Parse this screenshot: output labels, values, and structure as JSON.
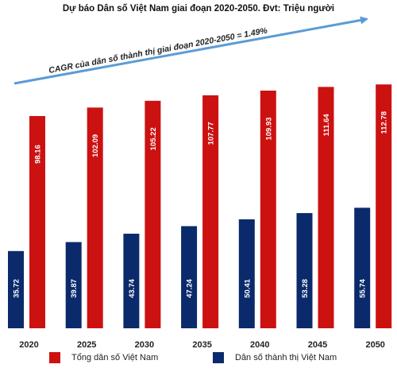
{
  "chart_data": {
    "type": "bar",
    "title": "Dự báo Dân số Việt Nam  giai đoạn 2020-2050. Đvt: Triệu người",
    "annotation": "CAGR của dân số thành thị giai đoạn 2020-2050 = 1.49%",
    "categories": [
      "2020",
      "2025",
      "2030",
      "2035",
      "2040",
      "2045",
      "2050"
    ],
    "series": [
      {
        "name": "Dân số thành thị Việt Nam",
        "color": "#0a2a6b",
        "values": [
          35.72,
          39.87,
          43.74,
          47.24,
          50.41,
          53.28,
          55.74
        ]
      },
      {
        "name": "Tổng dân số Việt Nam",
        "color": "#cc1111",
        "values": [
          98.16,
          102.09,
          105.22,
          107.77,
          109.93,
          111.64,
          112.78
        ]
      }
    ],
    "legend": [
      "Tổng dân số Việt Nam",
      "Dân số thành thị Việt Nam"
    ],
    "ylim": [
      0,
      125
    ],
    "grid": false,
    "legend_position": "bottom",
    "arrow_color": "#5b9bd5"
  }
}
